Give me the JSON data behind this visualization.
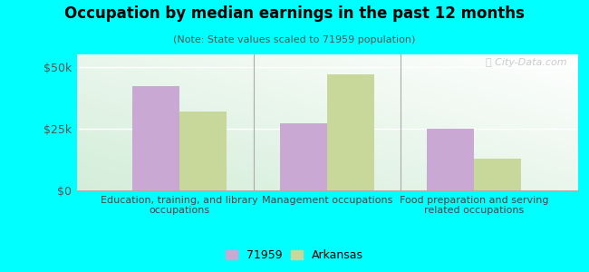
{
  "title": "Occupation by median earnings in the past 12 months",
  "subtitle": "(Note: State values scaled to 71959 population)",
  "categories": [
    "Education, training, and library\noccupations",
    "Management occupations",
    "Food preparation and serving\nrelated occupations"
  ],
  "values_71959": [
    42000,
    27000,
    25000
  ],
  "values_arkansas": [
    32000,
    47000,
    13000
  ],
  "color_71959": "#c9a8d4",
  "color_arkansas": "#c8d89a",
  "ylim": [
    0,
    55000
  ],
  "yticks": [
    0,
    25000,
    50000
  ],
  "ytick_labels": [
    "$0",
    "$25k",
    "$50k"
  ],
  "background_color": "#00ffff",
  "legend_labels": [
    "71959",
    "Arkansas"
  ],
  "watermark": "ⓘ City-Data.com",
  "bar_width": 0.32
}
